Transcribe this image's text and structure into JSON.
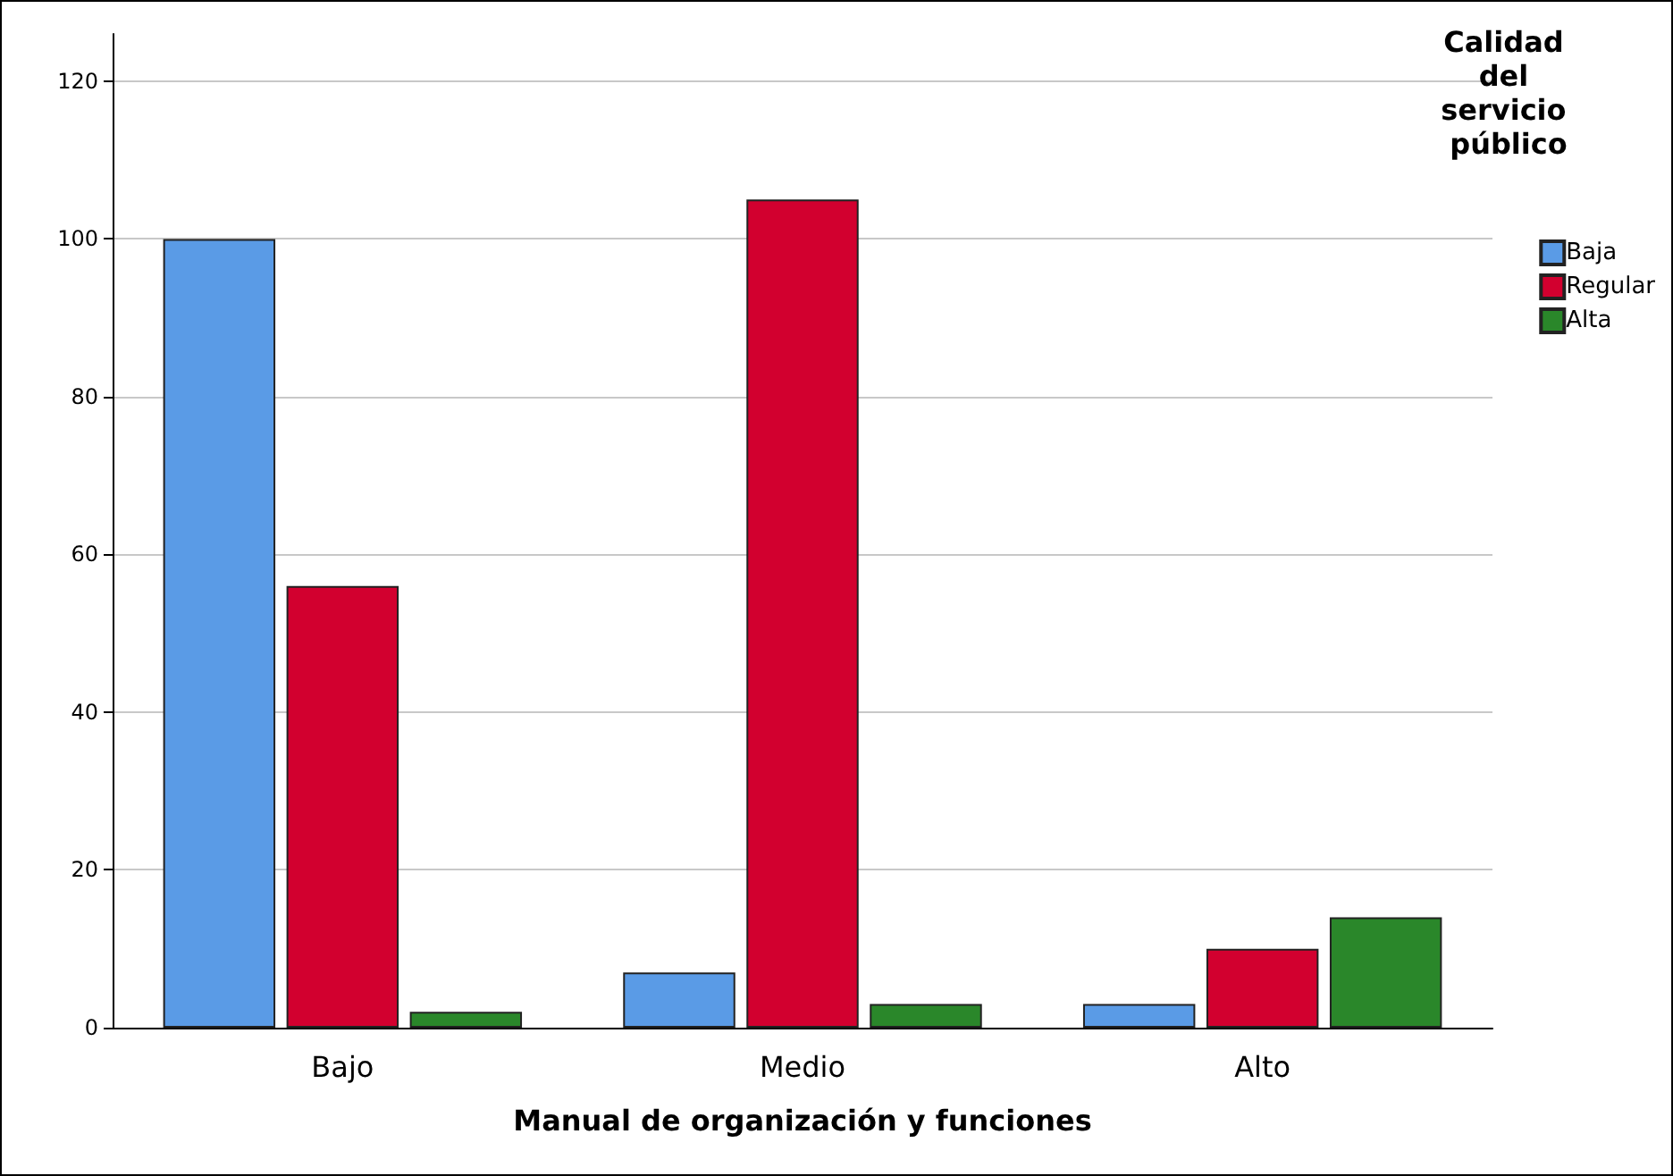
{
  "chart_data": {
    "type": "bar",
    "xlabel": "Manual de organización y funciones",
    "legend_title": "Calidad del servicio público",
    "categories": [
      "Bajo",
      "Medio",
      "Alto"
    ],
    "series": [
      {
        "name": "Baja",
        "color": "#5a9be6",
        "values": [
          100,
          7,
          3
        ]
      },
      {
        "name": "Regular",
        "color": "#d2002f",
        "values": [
          56,
          105,
          10
        ]
      },
      {
        "name": "Alta",
        "color": "#2a872a",
        "values": [
          2,
          3,
          14
        ]
      }
    ],
    "ylim": [
      0,
      126
    ],
    "yticks": [
      0,
      20,
      40,
      60,
      80,
      100,
      120
    ],
    "grid": "y",
    "legend": "right"
  }
}
